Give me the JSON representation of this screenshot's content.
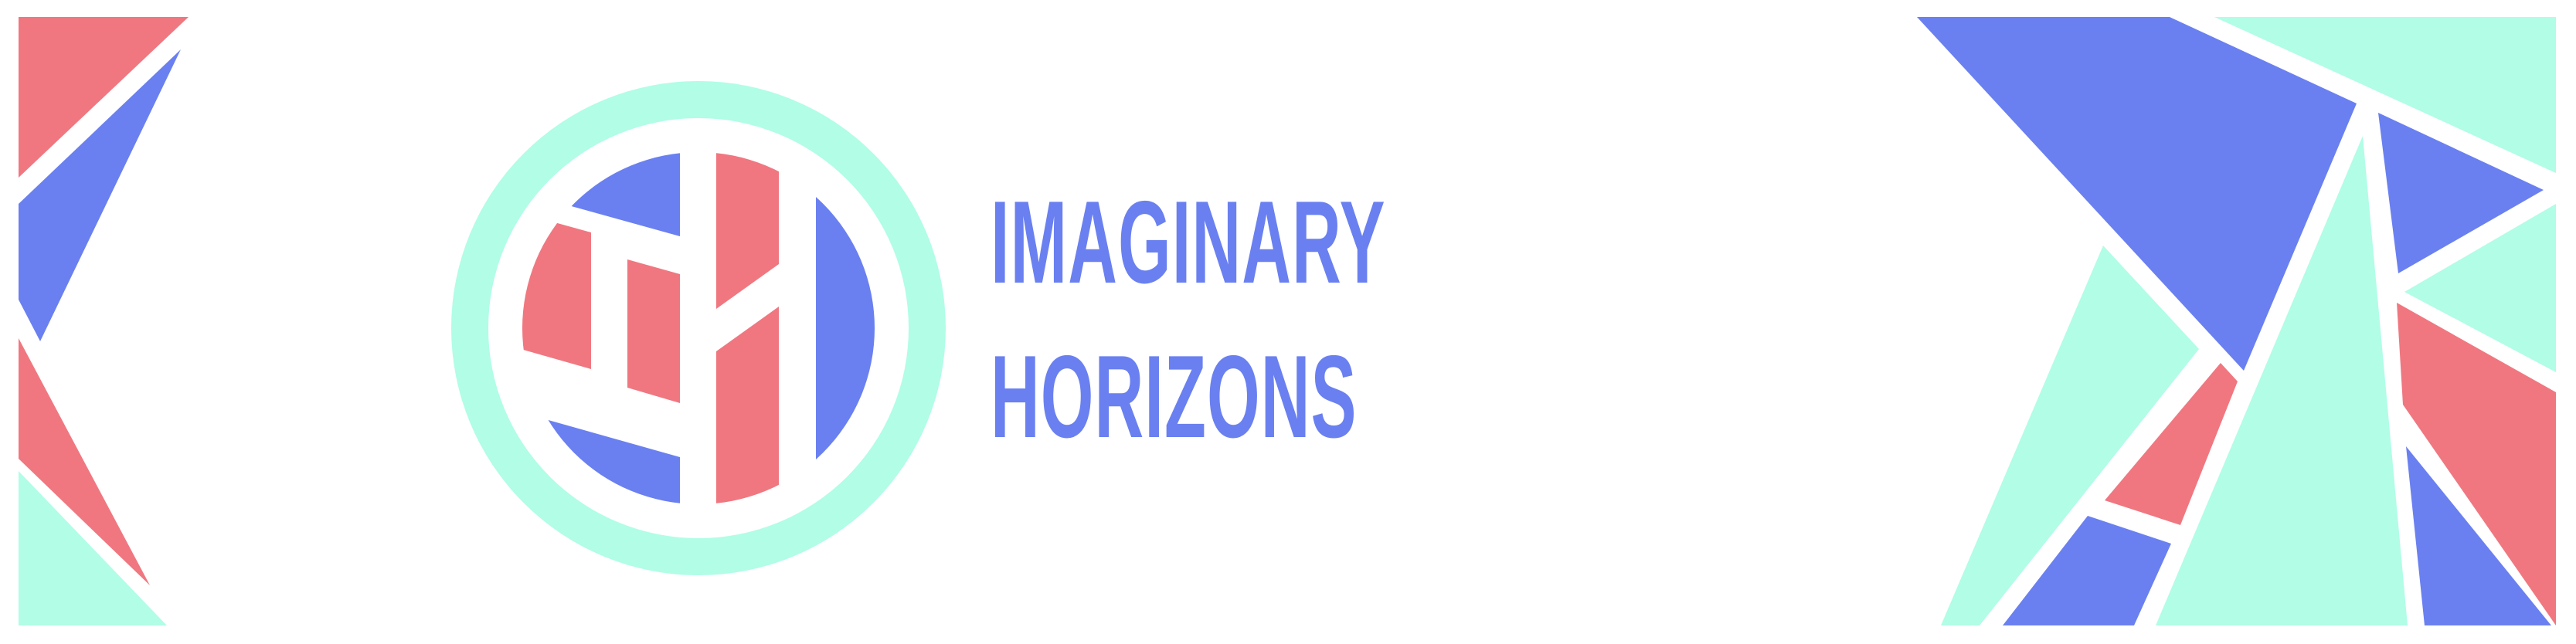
{
  "brand": {
    "line_1": "IMAGINARY",
    "line_2": "HORIZONS"
  },
  "colors": {
    "background": "#ffffff",
    "blue": "#6a80f0",
    "coral": "#f07780",
    "mint": "#b1fde6"
  },
  "logo": {
    "icon": "circular-emblem-icon"
  },
  "decor": {
    "left_icon": "geometric-shards-icon",
    "right_icon": "geometric-mosaic-icon"
  }
}
